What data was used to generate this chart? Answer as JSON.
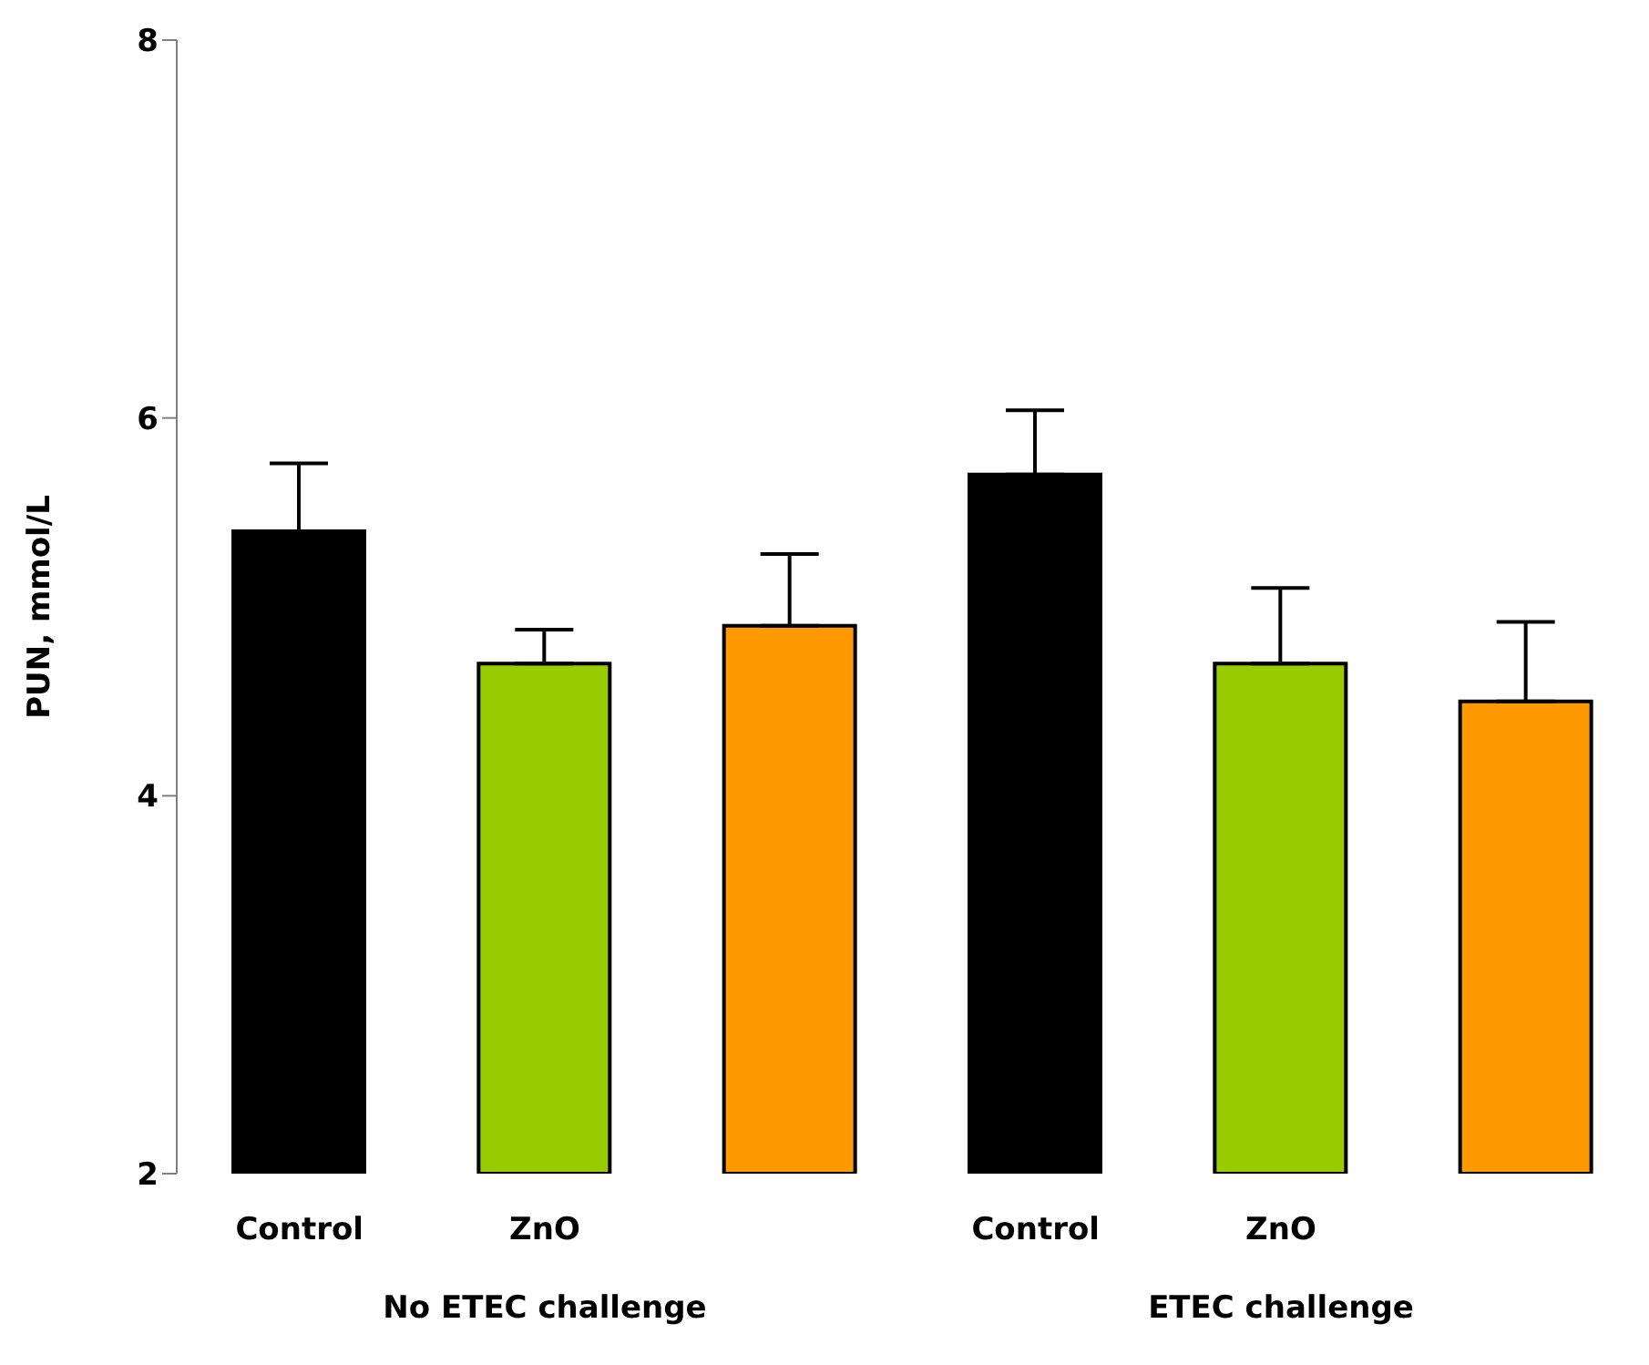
{
  "chart_data": {
    "type": "bar",
    "ylabel": "PUN, mmol/L",
    "categories": [
      "Control",
      "ZnO",
      null,
      "Control",
      "ZnO",
      null
    ],
    "values": [
      5.4,
      4.7,
      4.9,
      5.7,
      4.7,
      4.5
    ],
    "colors": [
      "#000000",
      "#99cc00",
      "#ff9900",
      "#000000",
      "#99cc00",
      "#ff9900"
    ],
    "errors": [
      [
        5.4,
        5.76
      ],
      [
        4.7,
        4.88
      ],
      [
        4.9,
        5.28
      ],
      [
        5.7,
        6.04
      ],
      [
        4.7,
        5.1
      ],
      [
        4.5,
        4.92
      ]
    ],
    "ylim": [
      2,
      8
    ],
    "yticks": [
      2,
      4,
      6,
      8
    ],
    "grid": false,
    "legend": false,
    "annotations": [
      "No ETEC challenge",
      "ETEC challenge"
    ]
  }
}
